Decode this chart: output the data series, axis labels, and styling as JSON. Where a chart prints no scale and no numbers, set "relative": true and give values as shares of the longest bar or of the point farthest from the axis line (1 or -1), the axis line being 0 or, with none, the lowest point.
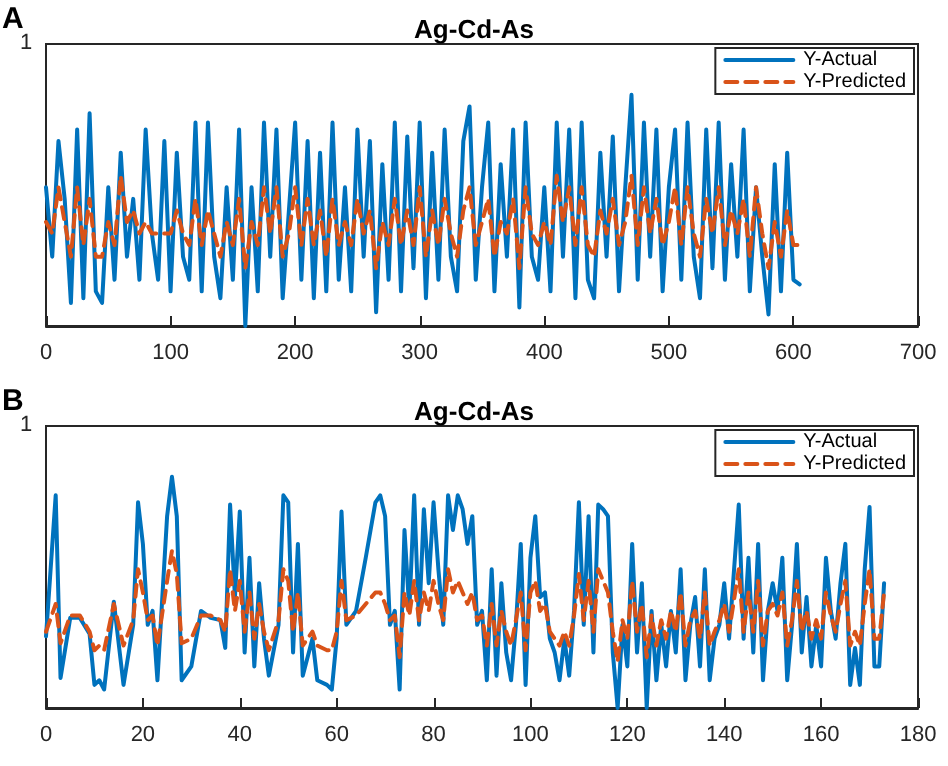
{
  "chart_data": [
    {
      "type": "line",
      "title": "Ag-Cd-As",
      "relative": true,
      "annotations": [
        "A",
        "1"
      ],
      "xlim": [
        0,
        700
      ],
      "xticks": [
        0,
        100,
        200,
        300,
        400,
        500,
        600,
        700
      ],
      "grid": false,
      "legend": "top right",
      "marker": "none",
      "x": [
        0,
        5,
        10,
        15,
        20,
        25,
        30,
        35,
        40,
        45,
        50,
        55,
        60,
        65,
        70,
        75,
        80,
        85,
        90,
        95,
        100,
        105,
        110,
        115,
        120,
        125,
        130,
        135,
        140,
        145,
        150,
        155,
        160,
        165,
        170,
        175,
        180,
        185,
        190,
        195,
        200,
        205,
        210,
        215,
        220,
        225,
        230,
        235,
        240,
        245,
        250,
        255,
        260,
        265,
        270,
        275,
        280,
        285,
        290,
        295,
        300,
        305,
        310,
        315,
        320,
        325,
        330,
        335,
        340,
        345,
        350,
        355,
        360,
        365,
        370,
        375,
        380,
        385,
        390,
        395,
        400,
        405,
        410,
        415,
        420,
        425,
        430,
        435,
        440,
        445,
        450,
        455,
        460,
        465,
        470,
        475,
        480,
        485,
        490,
        495,
        500,
        505,
        510,
        515,
        520,
        525,
        530,
        535,
        540,
        545,
        550,
        555,
        560,
        565,
        570,
        575,
        580,
        585,
        590,
        595,
        600,
        605
      ],
      "series": [
        {
          "name": "Y-Actual",
          "color": "#0072bd",
          "line_style": "solid",
          "values": [
            0.6,
            0.3,
            0.8,
            0.55,
            0.1,
            0.85,
            0.12,
            0.92,
            0.15,
            0.1,
            0.6,
            0.2,
            0.75,
            0.3,
            0.55,
            0.2,
            0.85,
            0.4,
            0.2,
            0.8,
            0.15,
            0.75,
            0.3,
            0.2,
            0.88,
            0.15,
            0.88,
            0.3,
            0.12,
            0.6,
            0.2,
            0.85,
            0.0,
            0.6,
            0.15,
            0.88,
            0.3,
            0.85,
            0.12,
            0.5,
            0.88,
            0.2,
            0.8,
            0.12,
            0.75,
            0.15,
            0.88,
            0.2,
            0.6,
            0.15,
            0.85,
            0.3,
            0.8,
            0.06,
            0.7,
            0.2,
            0.88,
            0.15,
            0.82,
            0.25,
            0.88,
            0.12,
            0.75,
            0.2,
            0.85,
            0.3,
            0.15,
            0.8,
            0.95,
            0.2,
            0.6,
            0.88,
            0.15,
            0.7,
            0.3,
            0.85,
            0.08,
            0.88,
            0.3,
            0.2,
            0.6,
            0.15,
            0.88,
            0.3,
            0.85,
            0.12,
            0.88,
            0.2,
            0.12,
            0.75,
            0.3,
            0.82,
            0.15,
            0.6,
            1.0,
            0.2,
            0.88,
            0.3,
            0.85,
            0.15,
            0.6,
            0.85,
            0.2,
            0.88,
            0.3,
            0.12,
            0.85,
            0.25,
            0.88,
            0.2,
            0.7,
            0.3,
            0.85,
            0.15,
            0.6,
            0.3,
            0.05,
            0.7,
            0.15,
            0.75,
            0.2,
            0.18
          ]
        },
        {
          "name": "Y-Predicted",
          "color": "#d95319",
          "line_style": "dashed",
          "values": [
            0.45,
            0.4,
            0.6,
            0.45,
            0.3,
            0.6,
            0.35,
            0.55,
            0.3,
            0.3,
            0.45,
            0.35,
            0.65,
            0.45,
            0.5,
            0.4,
            0.45,
            0.4,
            0.4,
            0.4,
            0.4,
            0.5,
            0.4,
            0.35,
            0.55,
            0.35,
            0.5,
            0.4,
            0.3,
            0.45,
            0.35,
            0.55,
            0.25,
            0.45,
            0.35,
            0.6,
            0.4,
            0.6,
            0.3,
            0.4,
            0.6,
            0.35,
            0.55,
            0.35,
            0.5,
            0.3,
            0.55,
            0.35,
            0.45,
            0.35,
            0.55,
            0.4,
            0.5,
            0.25,
            0.45,
            0.35,
            0.55,
            0.35,
            0.5,
            0.35,
            0.6,
            0.3,
            0.5,
            0.35,
            0.55,
            0.4,
            0.3,
            0.5,
            0.6,
            0.35,
            0.45,
            0.55,
            0.3,
            0.45,
            0.4,
            0.55,
            0.25,
            0.6,
            0.4,
            0.35,
            0.45,
            0.35,
            0.65,
            0.45,
            0.6,
            0.35,
            0.6,
            0.35,
            0.3,
            0.5,
            0.4,
            0.55,
            0.35,
            0.45,
            0.65,
            0.35,
            0.6,
            0.4,
            0.55,
            0.35,
            0.45,
            0.6,
            0.35,
            0.6,
            0.4,
            0.3,
            0.55,
            0.4,
            0.6,
            0.35,
            0.5,
            0.4,
            0.55,
            0.3,
            0.6,
            0.4,
            0.25,
            0.45,
            0.3,
            0.5,
            0.35,
            0.35
          ]
        }
      ]
    },
    {
      "type": "line",
      "title": "Ag-Cd-As",
      "relative": true,
      "annotations": [
        "B",
        "1"
      ],
      "xlim": [
        0,
        180
      ],
      "xticks": [
        0,
        20,
        40,
        60,
        80,
        100,
        120,
        140,
        160,
        180
      ],
      "grid": false,
      "legend": "top right",
      "marker": "none",
      "x": [
        0,
        2,
        3,
        5,
        7,
        9,
        10,
        11,
        12,
        14,
        16,
        18,
        19,
        20,
        21,
        22,
        23,
        25,
        26,
        27,
        28,
        30,
        32,
        34,
        36,
        37,
        38,
        39,
        40,
        41,
        42,
        43,
        44,
        45,
        46,
        48,
        49,
        50,
        51,
        52,
        53,
        55,
        56,
        58,
        59,
        60,
        61,
        62,
        64,
        66,
        68,
        69,
        70,
        71,
        72,
        73,
        74,
        75,
        76,
        77,
        78,
        79,
        80,
        81,
        82,
        83,
        84,
        85,
        86,
        87,
        88,
        89,
        90,
        91,
        92,
        93,
        94,
        95,
        96,
        97,
        98,
        99,
        100,
        101,
        102,
        103,
        104,
        105,
        106,
        107,
        108,
        109,
        110,
        111,
        112,
        113,
        114,
        115,
        116,
        117,
        118,
        119,
        120,
        121,
        122,
        123,
        124,
        125,
        126,
        127,
        128,
        129,
        130,
        131,
        132,
        133,
        134,
        135,
        136,
        137,
        138,
        139,
        140,
        141,
        143,
        144,
        145,
        146,
        147,
        148,
        149,
        150,
        151,
        152,
        153,
        154,
        155,
        156,
        157,
        158,
        159,
        160,
        161,
        162,
        163,
        164,
        165,
        166,
        167,
        168,
        169,
        170,
        171,
        172,
        173
      ],
      "series": [
        {
          "name": "Y-Actual",
          "color": "#0072bd",
          "line_style": "solid",
          "values": [
            0.31,
            0.92,
            0.13,
            0.39,
            0.39,
            0.32,
            0.1,
            0.12,
            0.08,
            0.46,
            0.1,
            0.36,
            0.89,
            0.71,
            0.36,
            0.42,
            0.12,
            0.83,
            1,
            0.83,
            0.12,
            0.18,
            0.42,
            0.39,
            0.38,
            0.26,
            0.88,
            0.48,
            0.85,
            0.24,
            0.65,
            0.18,
            0.54,
            0.3,
            0.14,
            0.36,
            0.92,
            0.89,
            0.24,
            0.71,
            0.14,
            0.3,
            0.12,
            0.1,
            0.08,
            0.3,
            0.85,
            0.36,
            0.42,
            0.65,
            0.89,
            0.92,
            0.83,
            0.36,
            0.42,
            0.08,
            0.77,
            0.42,
            0.92,
            0.36,
            0.86,
            0.54,
            0.89,
            0.6,
            0.36,
            0.92,
            0.77,
            0.92,
            0.86,
            0.71,
            0.83,
            0.36,
            0.42,
            0.12,
            0.6,
            0.14,
            0.54,
            0.24,
            0.12,
            0.36,
            0.71,
            0.1,
            0.65,
            0.83,
            0.48,
            0.5,
            0.3,
            0.24,
            0.12,
            0.3,
            0.14,
            0.42,
            0.89,
            0.36,
            0.83,
            0.24,
            0.88,
            0.86,
            0.83,
            0.24,
            0,
            0.36,
            0.18,
            0.71,
            0.24,
            0.54,
            0,
            0.42,
            0.12,
            0.36,
            0.18,
            0.42,
            0.24,
            0.6,
            0.12,
            0.36,
            0.48,
            0.18,
            0.6,
            0.12,
            0.3,
            0.36,
            0.54,
            0.3,
            0.88,
            0.3,
            0.65,
            0.24,
            0.71,
            0.12,
            0.42,
            0.54,
            0.42,
            0.65,
            0.12,
            0.36,
            0.71,
            0.24,
            0.48,
            0.18,
            0.36,
            0.18,
            0.65,
            0.42,
            0.3,
            0.54,
            0.71,
            0.1,
            0.26,
            0.1,
            0.6,
            0.87,
            0.18,
            0.18,
            0.54
          ]
        },
        {
          "name": "Y-Predicted",
          "color": "#d95319",
          "line_style": "dashed",
          "values": [
            0.33,
            0.45,
            0.28,
            0.4,
            0.4,
            0.33,
            0.25,
            0.27,
            0.25,
            0.45,
            0.27,
            0.38,
            0.6,
            0.5,
            0.38,
            0.4,
            0.27,
            0.55,
            0.68,
            0.58,
            0.28,
            0.3,
            0.4,
            0.4,
            0.38,
            0.33,
            0.6,
            0.42,
            0.55,
            0.33,
            0.5,
            0.3,
            0.45,
            0.33,
            0.25,
            0.38,
            0.6,
            0.55,
            0.33,
            0.5,
            0.27,
            0.33,
            0.27,
            0.25,
            0.25,
            0.33,
            0.55,
            0.38,
            0.4,
            0.45,
            0.5,
            0.5,
            0.45,
            0.38,
            0.4,
            0.22,
            0.5,
            0.4,
            0.55,
            0.38,
            0.5,
            0.42,
            0.55,
            0.45,
            0.38,
            0.6,
            0.5,
            0.55,
            0.5,
            0.45,
            0.5,
            0.38,
            0.4,
            0.27,
            0.45,
            0.27,
            0.42,
            0.33,
            0.27,
            0.38,
            0.5,
            0.25,
            0.5,
            0.55,
            0.42,
            0.45,
            0.33,
            0.3,
            0.27,
            0.33,
            0.27,
            0.4,
            0.58,
            0.38,
            0.55,
            0.33,
            0.6,
            0.55,
            0.5,
            0.33,
            0.2,
            0.38,
            0.3,
            0.55,
            0.33,
            0.45,
            0.22,
            0.4,
            0.27,
            0.38,
            0.3,
            0.42,
            0.33,
            0.5,
            0.27,
            0.38,
            0.42,
            0.3,
            0.5,
            0.27,
            0.33,
            0.38,
            0.45,
            0.33,
            0.6,
            0.33,
            0.5,
            0.33,
            0.55,
            0.27,
            0.42,
            0.45,
            0.4,
            0.5,
            0.27,
            0.38,
            0.55,
            0.33,
            0.42,
            0.3,
            0.38,
            0.3,
            0.5,
            0.4,
            0.33,
            0.45,
            0.55,
            0.27,
            0.33,
            0.27,
            0.45,
            0.6,
            0.3,
            0.3,
            0.5
          ]
        }
      ]
    }
  ]
}
